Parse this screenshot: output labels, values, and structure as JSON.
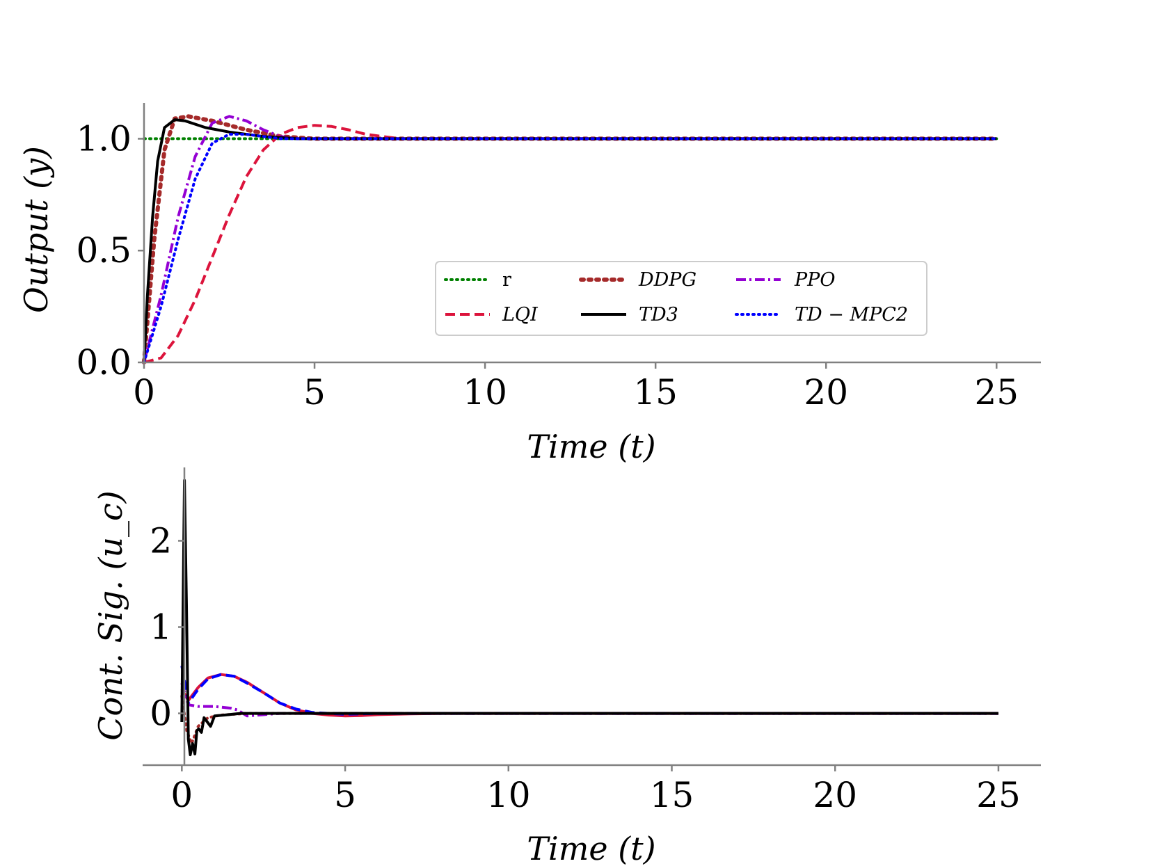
{
  "chart_data": [
    {
      "type": "line",
      "xlabel": "Time (t)",
      "ylabel": "Output (y)",
      "xlim": [
        0,
        26.3
      ],
      "ylim": [
        0,
        1.16
      ],
      "xticks": [
        0,
        5,
        10,
        15,
        20,
        25
      ],
      "xtick_labels": [
        "0",
        "5",
        "10",
        "15",
        "20",
        "25"
      ],
      "yticks": [
        0.0,
        0.5,
        1.0
      ],
      "ytick_labels": [
        "0.0",
        "0.5",
        "1.0"
      ],
      "legend": {
        "position": "center-right",
        "ncol": 3
      },
      "series": [
        {
          "name": "r",
          "label": "r",
          "color": "#008000",
          "style": "dotted",
          "x": [
            0,
            25
          ],
          "y": [
            1.0,
            1.0
          ]
        },
        {
          "name": "DDPG",
          "label": "DDPG",
          "color": "#A52A2A",
          "style": "dotted-thick",
          "x": [
            0,
            0.3,
            0.6,
            0.9,
            1.3,
            2.0,
            3.0,
            4.0,
            5.0,
            7.0,
            25
          ],
          "y": [
            0,
            0.55,
            0.95,
            1.09,
            1.1,
            1.08,
            1.04,
            1.01,
            1.0,
            1.0,
            1.0
          ]
        },
        {
          "name": "PPO",
          "label": "PPO",
          "color": "#9400D3",
          "style": "dashdot",
          "x": [
            0,
            0.5,
            1.0,
            1.5,
            2.0,
            2.5,
            3.0,
            3.5,
            4.0,
            4.5,
            5.0,
            6.0,
            25
          ],
          "y": [
            0,
            0.3,
            0.65,
            0.92,
            1.07,
            1.1,
            1.08,
            1.04,
            1.01,
            1.0,
            1.0,
            1.0,
            1.0
          ]
        },
        {
          "name": "LQI",
          "label": "LQI",
          "color": "#DC143C",
          "style": "dashed",
          "x": [
            0,
            0.5,
            1.0,
            1.5,
            2.0,
            2.5,
            3.0,
            3.5,
            4.0,
            4.5,
            5.0,
            5.5,
            6.0,
            6.5,
            7.0,
            7.5,
            8.0,
            9.0,
            25
          ],
          "y": [
            0,
            0.02,
            0.12,
            0.28,
            0.47,
            0.66,
            0.83,
            0.95,
            1.02,
            1.05,
            1.06,
            1.055,
            1.04,
            1.02,
            1.01,
            1.0,
            1.0,
            1.0,
            1.0
          ]
        },
        {
          "name": "TD3",
          "label": "TD3",
          "color": "#000000",
          "style": "solid",
          "x": [
            0,
            0.1,
            0.25,
            0.4,
            0.6,
            0.9,
            1.2,
            1.8,
            2.5,
            3.5,
            4.5,
            6.0,
            25
          ],
          "y": [
            0,
            0.3,
            0.65,
            0.9,
            1.05,
            1.085,
            1.08,
            1.05,
            1.03,
            1.01,
            1.0,
            1.0,
            1.0
          ]
        },
        {
          "name": "TD-MPC2",
          "label": "TD − MPC2",
          "color": "#0000FF",
          "style": "dotted",
          "x": [
            0,
            0.5,
            1.0,
            1.5,
            2.0,
            2.5,
            3.0,
            3.5,
            4.0,
            5.0,
            25
          ],
          "y": [
            0,
            0.25,
            0.55,
            0.82,
            0.98,
            1.02,
            1.02,
            1.01,
            1.0,
            1.0,
            1.0
          ]
        }
      ]
    },
    {
      "type": "line",
      "xlabel": "Time (t)",
      "ylabel": "Cont. Sig. (u_c)",
      "xlim": [
        -1.2,
        26.3
      ],
      "ylim": [
        -0.6,
        2.85
      ],
      "xticks": [
        0,
        5,
        10,
        15,
        20,
        25
      ],
      "xtick_labels": [
        "0",
        "5",
        "10",
        "15",
        "20",
        "25"
      ],
      "yticks": [
        0,
        1,
        2
      ],
      "ytick_labels": [
        "0",
        "1",
        "2"
      ],
      "series": [
        {
          "name": "LQI",
          "color": "#DC143C",
          "style": "solid",
          "x": [
            0,
            0.2,
            0.5,
            0.8,
            1.2,
            1.6,
            2.0,
            2.5,
            3.0,
            3.5,
            4.0,
            4.5,
            5.0,
            5.5,
            6.0,
            7.0,
            8.0,
            25
          ],
          "y": [
            0.28,
            0.15,
            0.3,
            0.41,
            0.45,
            0.43,
            0.36,
            0.24,
            0.12,
            0.04,
            0.0,
            -0.02,
            -0.03,
            -0.025,
            -0.015,
            -0.005,
            0,
            0
          ]
        },
        {
          "name": "TD-MPC2",
          "color": "#0000FF",
          "style": "dashed",
          "x": [
            0,
            0.2,
            0.5,
            0.8,
            1.2,
            1.6,
            2.0,
            2.5,
            3.0,
            3.5,
            4.0,
            4.5,
            5.0,
            6.0,
            8.0,
            25
          ],
          "y": [
            0.55,
            0.12,
            0.28,
            0.4,
            0.45,
            0.43,
            0.35,
            0.24,
            0.12,
            0.05,
            0.01,
            0.0,
            -0.01,
            0,
            0,
            0
          ]
        },
        {
          "name": "PPO",
          "color": "#9400D3",
          "style": "dashdot",
          "x": [
            0,
            0.2,
            0.5,
            1.0,
            1.5,
            1.7,
            2.0,
            3.0,
            4.0,
            25
          ],
          "y": [
            0.35,
            0.1,
            0.08,
            0.08,
            0.06,
            0.04,
            -0.03,
            0.0,
            0.0,
            0
          ]
        },
        {
          "name": "DDPG",
          "color": "#A52A2A",
          "style": "dotted",
          "x": [
            0,
            0.15,
            0.3,
            0.5,
            0.8,
            1.2,
            2.0,
            3.0,
            25
          ],
          "y": [
            0.2,
            -0.2,
            -0.35,
            -0.15,
            -0.05,
            -0.02,
            0,
            0,
            0
          ]
        },
        {
          "name": "TD3",
          "color": "#000000",
          "style": "solid",
          "x": [
            0,
            0.08,
            0.14,
            0.2,
            0.26,
            0.33,
            0.4,
            0.46,
            0.52,
            0.6,
            0.68,
            0.78,
            0.88,
            1.0,
            1.3,
            1.8,
            2.5,
            25
          ],
          "y": [
            -0.1,
            2.7,
            1.3,
            -0.3,
            -0.48,
            -0.35,
            -0.47,
            -0.2,
            -0.18,
            -0.22,
            -0.05,
            -0.1,
            -0.15,
            -0.03,
            -0.02,
            0,
            0,
            0
          ]
        }
      ]
    }
  ]
}
